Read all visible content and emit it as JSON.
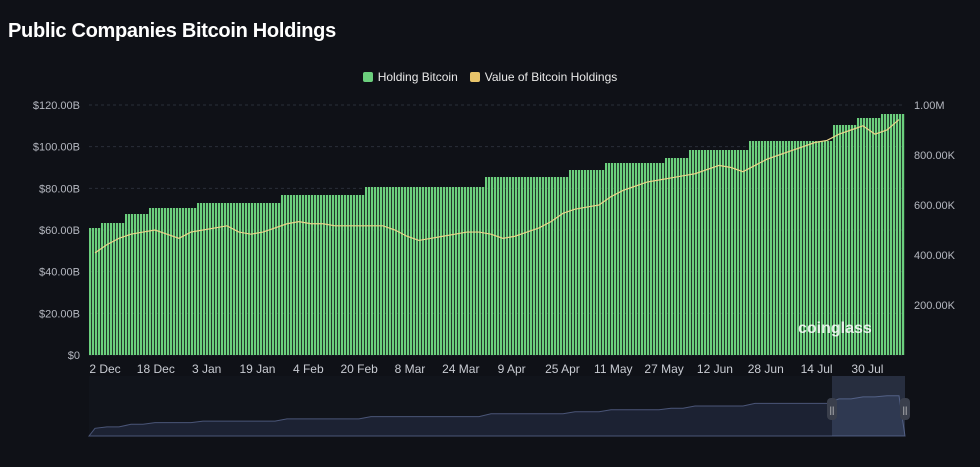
{
  "title": "Public Companies Bitcoin Holdings",
  "watermark": "coinglass",
  "colors": {
    "bar": "#6bcf7d",
    "line": "#e8c46a",
    "bg": "#0f1117",
    "nav": "#2a3148"
  },
  "chart_data": {
    "type": "bar",
    "title": "Public Companies Bitcoin Holdings",
    "legend": [
      "Holding Bitcoin",
      "Value of Bitcoin Holdings"
    ],
    "legend_position": "top-center",
    "x_ticks": [
      "2 Dec",
      "18 Dec",
      "3 Jan",
      "19 Jan",
      "4 Feb",
      "20 Feb",
      "8 Mar",
      "24 Mar",
      "9 Apr",
      "25 Apr",
      "11 May",
      "27 May",
      "12 Jun",
      "28 Jun",
      "14 Jul",
      "30 Jul"
    ],
    "y_left_ticks": [
      "$0",
      "$20.00B",
      "$40.00B",
      "$60.00B",
      "$80.00B",
      "$100.00B",
      "$120.00B"
    ],
    "y_left_range": [
      0,
      120
    ],
    "y_right_ticks": [
      "200.00K",
      "400.00K",
      "600.00K",
      "800.00K",
      "1.00M"
    ],
    "y_right_range": [
      0,
      1000
    ],
    "series": [
      {
        "name": "Holding Bitcoin",
        "axis": "right",
        "unit": "K BTC",
        "values": [
          508,
          528,
          528,
          564,
          564,
          588,
          588,
          588,
          588,
          608,
          608,
          608,
          608,
          608,
          608,
          608,
          640,
          640,
          640,
          640,
          640,
          640,
          640,
          672,
          672,
          672,
          672,
          672,
          672,
          672,
          672,
          672,
          672,
          712,
          712,
          712,
          712,
          712,
          712,
          712,
          740,
          740,
          740,
          768,
          768,
          768,
          768,
          768,
          788,
          788,
          820,
          820,
          820,
          820,
          820,
          856,
          856,
          856,
          856,
          856,
          856,
          856,
          920,
          920,
          948,
          948,
          964,
          964
        ]
      },
      {
        "name": "Value of Bitcoin Holdings",
        "axis": "left",
        "unit": "$B",
        "values": [
          49,
          53,
          56,
          58,
          59,
          60,
          58,
          56,
          59,
          60,
          61,
          62,
          59,
          58,
          59,
          61,
          63,
          64,
          63,
          63,
          62,
          62,
          62,
          62,
          62,
          60,
          57,
          55,
          56,
          57,
          58,
          59,
          59,
          58,
          56,
          57,
          59,
          61,
          64,
          68,
          70,
          71,
          72,
          76,
          79,
          81,
          83,
          84,
          85,
          86,
          87,
          89,
          91,
          90,
          88,
          91,
          94,
          96,
          98,
          100,
          102,
          103,
          106,
          108,
          110,
          106,
          108,
          113
        ]
      }
    ],
    "grid": true
  }
}
